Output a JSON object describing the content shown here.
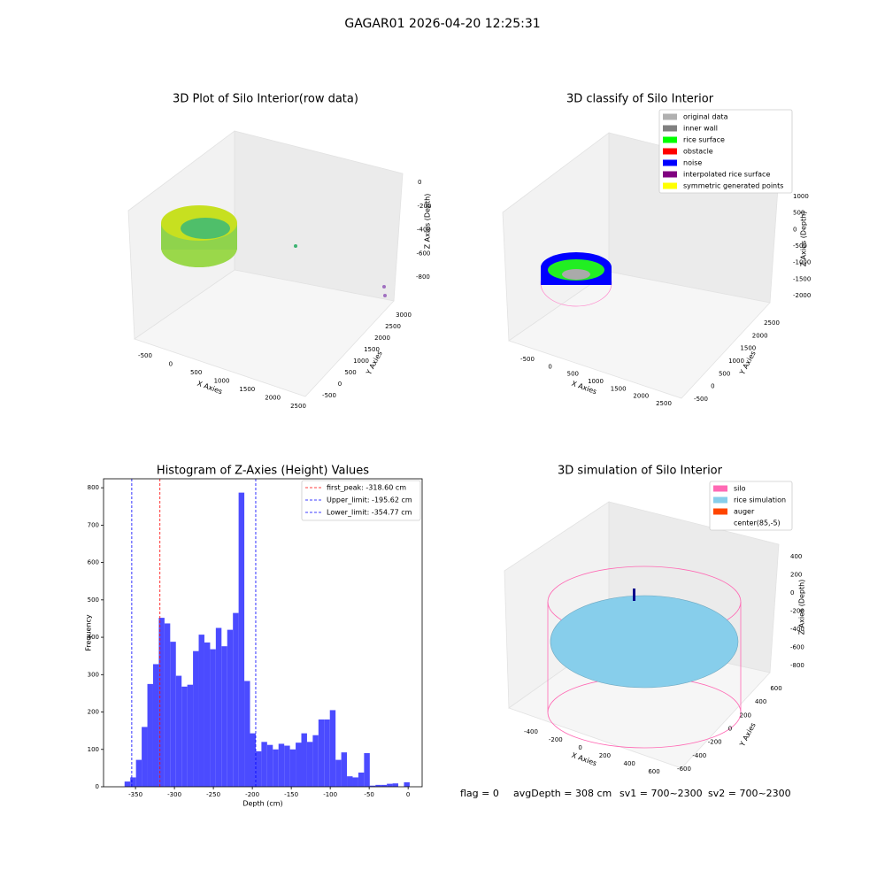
{
  "title": "GAGAR01 2026-04-20 12:25:31",
  "footer": [
    "flag = 0",
    "avgDepth = 308 cm",
    "sv1 = 700~2300",
    "sv2 = 700~2300"
  ],
  "chart_data": [
    {
      "type": "scatter3d",
      "title": "3D Plot of Silo Interior(row data)",
      "xlabel": "X Axies",
      "ylabel": "Y Axies",
      "zlabel": "Z Axies (Depth)",
      "xticks": [
        -500,
        0,
        500,
        1000,
        1500,
        2000,
        2500
      ],
      "yticks": [
        -500,
        0,
        500,
        1000,
        1500,
        2000,
        2500,
        3000
      ],
      "zticks": [
        0,
        -200,
        -400,
        -600,
        -800
      ]
    },
    {
      "type": "scatter3d",
      "title": "3D classify of Silo Interior",
      "xlabel": "X Axies",
      "ylabel": "Y Axies",
      "zlabel": "Z Axies (Depth)",
      "xticks": [
        -500,
        0,
        500,
        1000,
        1500,
        2000,
        2500
      ],
      "yticks": [
        -500,
        0,
        500,
        1000,
        1500,
        2000,
        2500
      ],
      "zticks": [
        1000,
        500,
        0,
        -500,
        -1000,
        -1500,
        -2000
      ],
      "legend": [
        {
          "name": "original data",
          "color": "#b0b0b0"
        },
        {
          "name": "inner wall",
          "color": "#808080"
        },
        {
          "name": "rice surface",
          "color": "#00ff00"
        },
        {
          "name": "obstacle",
          "color": "#ff0000"
        },
        {
          "name": "noise",
          "color": "#0000ff"
        },
        {
          "name": "interpolated rice surface",
          "color": "#800080"
        },
        {
          "name": "symmetric generated points",
          "color": "#ffff00"
        }
      ]
    },
    {
      "type": "histogram",
      "title": "Histogram of Z-Axies (Height) Values",
      "xlabel": "Depth (cm)",
      "ylabel": "Frequency",
      "color": "#4b4bff",
      "bins": [
        -364,
        -356.68,
        -349.36,
        -342.04,
        -334.72,
        -327.4,
        -320.08,
        -312.76,
        -305.44,
        -298.12,
        -290.8,
        -283.48,
        -276.16,
        -268.84,
        -261.52,
        -254.2,
        -246.88,
        -239.56,
        -232.24,
        -224.92,
        -217.6,
        -210.28,
        -202.96,
        -195.64,
        -188.32,
        -181,
        -173.68,
        -166.36,
        -159.04,
        -151.72,
        -144.4,
        -137.08,
        -129.76,
        -122.44,
        -115.12,
        -107.8,
        -100.48,
        -93.16,
        -85.84,
        -78.52,
        -71.2,
        -63.88,
        -56.56,
        -49.24,
        -41.92,
        -34.6,
        -27.28,
        -19.96,
        -12.64,
        -5.32,
        2
      ],
      "values": [
        14,
        25,
        72,
        160,
        275,
        328,
        452,
        437,
        388,
        297,
        268,
        273,
        363,
        407,
        386,
        368,
        425,
        376,
        420,
        465,
        787,
        283,
        143,
        95,
        120,
        112,
        100,
        115,
        110,
        100,
        118,
        143,
        120,
        138,
        180,
        180,
        205,
        72,
        92,
        28,
        25,
        38,
        90,
        3,
        5,
        5,
        8,
        9,
        0,
        12
      ],
      "xlim": [
        -391,
        18
      ],
      "ylim": [
        0,
        824
      ],
      "xticks": [
        -350,
        -300,
        -250,
        -200,
        -150,
        -100,
        -50,
        0
      ],
      "yticks": [
        0,
        100,
        200,
        300,
        400,
        500,
        600,
        700,
        800
      ],
      "lines": [
        {
          "name": "first_peak: -318.60 cm",
          "value": -318.6,
          "color": "#ff0000"
        },
        {
          "name": "Upper_limit: -195.62 cm",
          "value": -195.62,
          "color": "#0000ff"
        },
        {
          "name": "Lower_limit: -354.77 cm",
          "value": -354.77,
          "color": "#0000ff"
        }
      ]
    },
    {
      "type": "surface3d",
      "title": "3D simulation of Silo Interior",
      "xlabel": "X Axies",
      "ylabel": "Y Axies",
      "zlabel": "Z Axies (Depth)",
      "xticks": [
        -400,
        -200,
        0,
        200,
        400,
        600
      ],
      "yticks": [
        -600,
        -400,
        -200,
        0,
        200,
        400,
        600
      ],
      "zticks": [
        400,
        200,
        0,
        -200,
        -400,
        -600,
        -800
      ],
      "legend": [
        {
          "name": "silo",
          "color": "#ff69b4"
        },
        {
          "name": "rice simulation",
          "color": "#87ceeb"
        },
        {
          "name": "auger",
          "color": "#ff4500"
        },
        {
          "name": "center(85,-5)"
        }
      ]
    }
  ]
}
